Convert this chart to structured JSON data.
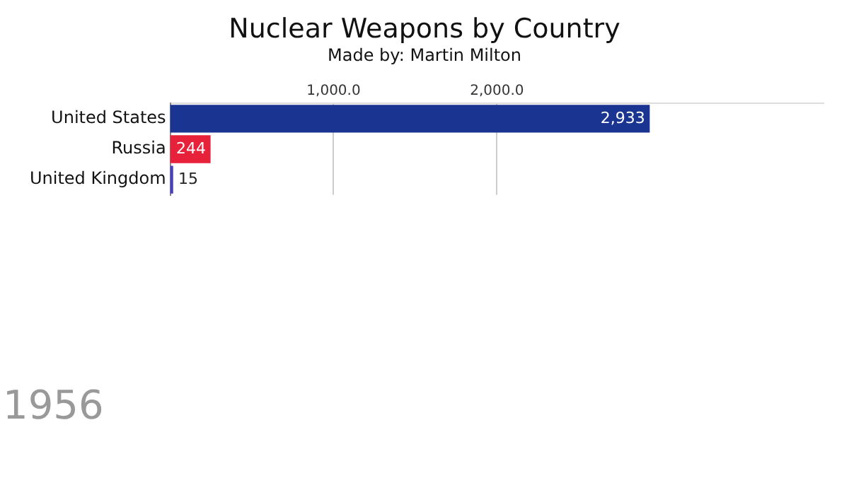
{
  "chart_data": {
    "type": "bar",
    "orientation": "horizontal",
    "title": "Nuclear Weapons by Country",
    "subtitle": "Made by: Martin Milton",
    "categories": [
      "United States",
      "Russia",
      "United Kingdom"
    ],
    "values": [
      2933,
      244,
      15
    ],
    "colors": [
      "#1a3591",
      "#e8213b",
      "#4a3fc0"
    ],
    "value_labels": [
      "2,933",
      "244",
      "15"
    ],
    "xlim": [
      0,
      4000
    ],
    "xticks": [
      {
        "value": 1000,
        "label": "1,000.0"
      },
      {
        "value": 2000,
        "label": "2,000.0"
      }
    ],
    "grid": "x",
    "legend": false,
    "annotations": [
      "1956"
    ]
  }
}
